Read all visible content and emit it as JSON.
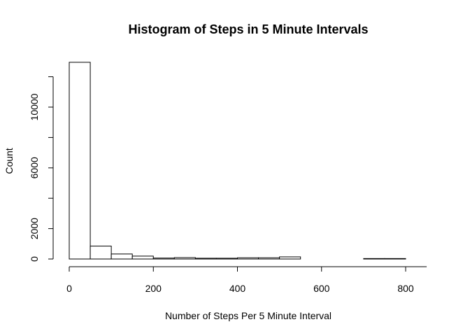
{
  "chart_data": {
    "type": "bar",
    "title": "Histogram of Steps in 5 Minute Intervals",
    "xlabel": "Number of Steps Per 5 Minute Interval",
    "ylabel": "Count",
    "xlim": [
      0,
      850
    ],
    "ylim": [
      0,
      13000
    ],
    "xticks": [
      0,
      200,
      400,
      600,
      800
    ],
    "yticks": [
      0,
      2000,
      6000,
      10000
    ],
    "bin_width": 50,
    "bins": [
      0,
      50,
      100,
      150,
      200,
      250,
      300,
      350,
      400,
      450,
      500,
      550,
      600,
      650,
      700,
      750
    ],
    "values": [
      12950,
      850,
      330,
      190,
      60,
      90,
      50,
      50,
      80,
      80,
      140,
      0,
      0,
      0,
      30,
      30
    ],
    "grid": false,
    "colors": {
      "bar_fill": "#ffffff",
      "bar_stroke": "#000000",
      "text": "#000000"
    }
  }
}
